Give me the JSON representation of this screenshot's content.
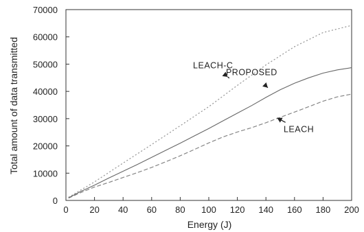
{
  "chart_data": {
    "type": "line",
    "title": "",
    "xlabel": "Energy (J)",
    "ylabel": "Total amount of data transmitted",
    "xlim": [
      0,
      200
    ],
    "ylim": [
      0,
      70000
    ],
    "x_ticks": [
      "0",
      "20",
      "40",
      "60",
      "80",
      "100",
      "120",
      "140",
      "160",
      "180",
      "200"
    ],
    "y_ticks": [
      "0",
      "10000",
      "20000",
      "30000",
      "40000",
      "50000",
      "60000",
      "70000"
    ],
    "grid": false,
    "series": [
      {
        "name": "PROPOSED",
        "style": "solid",
        "x": [
          2,
          10,
          20,
          30,
          40,
          50,
          60,
          70,
          80,
          90,
          100,
          110,
          120,
          130,
          140,
          150,
          160,
          170,
          180,
          190,
          200
        ],
        "y": [
          1000,
          3200,
          5600,
          8200,
          10700,
          13200,
          15800,
          18400,
          21000,
          23700,
          26400,
          29200,
          32000,
          34800,
          37800,
          40600,
          43000,
          45000,
          46700,
          47900,
          48700
        ]
      },
      {
        "name": "LEACH-C",
        "style": "dotted",
        "x": [
          2,
          20,
          40,
          60,
          80,
          100,
          120,
          140,
          160,
          180,
          200
        ],
        "y": [
          1200,
          6800,
          13700,
          20500,
          27400,
          34400,
          42200,
          49700,
          56400,
          61600,
          64200
        ]
      },
      {
        "name": "LEACH",
        "style": "dashed",
        "x": [
          2,
          10,
          20,
          30,
          40,
          50,
          60,
          70,
          80,
          90,
          100,
          110,
          120,
          130,
          140,
          150,
          160,
          170,
          180,
          190,
          200
        ],
        "y": [
          900,
          2800,
          4900,
          6600,
          8400,
          10200,
          12100,
          14200,
          16400,
          18700,
          21100,
          23300,
          25100,
          26700,
          28500,
          30500,
          32400,
          34400,
          36400,
          38000,
          39000
        ]
      }
    ],
    "annotations": [
      {
        "text": "LEACH-C",
        "at_x": 114,
        "at_y": 45000,
        "label_x": 103,
        "label_y": 48500
      },
      {
        "text": "PROPOSED",
        "at_x": 142,
        "at_y": 41000,
        "label_x": 130,
        "label_y": 46000
      },
      {
        "text": "LEACH",
        "at_x": 147,
        "at_y": 30500,
        "label_x": 163,
        "label_y": 25000
      }
    ]
  }
}
